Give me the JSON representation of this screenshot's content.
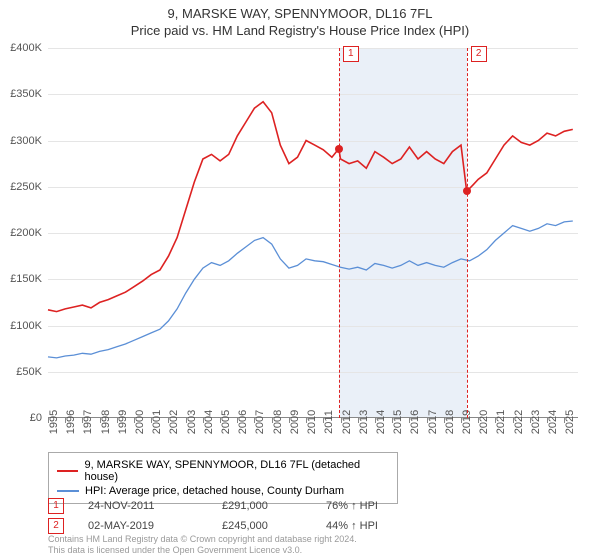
{
  "titles": {
    "line1": "9, MARSKE WAY, SPENNYMOOR, DL16 7FL",
    "line2": "Price paid vs. HM Land Registry's House Price Index (HPI)"
  },
  "chart": {
    "type": "line",
    "background_color": "#ffffff",
    "grid_color": "#e5e5e5",
    "axis_color": "#888888",
    "label_color": "#555555",
    "label_fontsize": 11,
    "x_years": [
      1995,
      1996,
      1997,
      1998,
      1999,
      2000,
      2001,
      2002,
      2003,
      2004,
      2005,
      2006,
      2007,
      2008,
      2009,
      2010,
      2011,
      2012,
      2013,
      2014,
      2015,
      2016,
      2017,
      2018,
      2019,
      2020,
      2021,
      2022,
      2023,
      2024,
      2025
    ],
    "xlim": [
      1995,
      2025.8
    ],
    "ylim": [
      0,
      400000
    ],
    "ytick_step": 50000,
    "y_tick_labels": [
      "£0",
      "£50K",
      "£100K",
      "£150K",
      "£200K",
      "£250K",
      "£300K",
      "£350K",
      "£400K"
    ],
    "shaded_band": {
      "x_start": 2011.9,
      "x_end": 2019.33,
      "color": "#eaf0f8"
    },
    "series": [
      {
        "name": "price_paid",
        "label": "9, MARSKE WAY, SPENNYMOOR, DL16 7FL (detached house)",
        "color": "#dd2222",
        "line_width": 1.6,
        "data": [
          [
            1995,
            117000
          ],
          [
            1995.5,
            115000
          ],
          [
            1996,
            118000
          ],
          [
            1996.5,
            120000
          ],
          [
            1997,
            122000
          ],
          [
            1997.5,
            119000
          ],
          [
            1998,
            125000
          ],
          [
            1998.5,
            128000
          ],
          [
            1999,
            132000
          ],
          [
            1999.5,
            136000
          ],
          [
            2000,
            142000
          ],
          [
            2000.5,
            148000
          ],
          [
            2001,
            155000
          ],
          [
            2001.5,
            160000
          ],
          [
            2002,
            175000
          ],
          [
            2002.5,
            195000
          ],
          [
            2003,
            225000
          ],
          [
            2003.5,
            255000
          ],
          [
            2004,
            280000
          ],
          [
            2004.5,
            285000
          ],
          [
            2005,
            278000
          ],
          [
            2005.5,
            285000
          ],
          [
            2006,
            305000
          ],
          [
            2006.5,
            320000
          ],
          [
            2007,
            335000
          ],
          [
            2007.5,
            342000
          ],
          [
            2008,
            330000
          ],
          [
            2008.5,
            295000
          ],
          [
            2009,
            275000
          ],
          [
            2009.5,
            282000
          ],
          [
            2010,
            300000
          ],
          [
            2010.5,
            295000
          ],
          [
            2011,
            290000
          ],
          [
            2011.5,
            282000
          ],
          [
            2011.9,
            291000
          ],
          [
            2012,
            280000
          ],
          [
            2012.5,
            275000
          ],
          [
            2013,
            278000
          ],
          [
            2013.5,
            270000
          ],
          [
            2014,
            288000
          ],
          [
            2014.5,
            282000
          ],
          [
            2015,
            275000
          ],
          [
            2015.5,
            280000
          ],
          [
            2016,
            293000
          ],
          [
            2016.5,
            280000
          ],
          [
            2017,
            288000
          ],
          [
            2017.5,
            280000
          ],
          [
            2018,
            275000
          ],
          [
            2018.5,
            288000
          ],
          [
            2019,
            295000
          ],
          [
            2019.33,
            245000
          ],
          [
            2019.7,
            252000
          ],
          [
            2020,
            258000
          ],
          [
            2020.5,
            265000
          ],
          [
            2021,
            280000
          ],
          [
            2021.5,
            295000
          ],
          [
            2022,
            305000
          ],
          [
            2022.5,
            298000
          ],
          [
            2023,
            295000
          ],
          [
            2023.5,
            300000
          ],
          [
            2024,
            308000
          ],
          [
            2024.5,
            305000
          ],
          [
            2025,
            310000
          ],
          [
            2025.5,
            312000
          ]
        ]
      },
      {
        "name": "hpi",
        "label": "HPI: Average price, detached house, County Durham",
        "color": "#5b8fd6",
        "line_width": 1.3,
        "data": [
          [
            1995,
            66000
          ],
          [
            1995.5,
            65000
          ],
          [
            1996,
            67000
          ],
          [
            1996.5,
            68000
          ],
          [
            1997,
            70000
          ],
          [
            1997.5,
            69000
          ],
          [
            1998,
            72000
          ],
          [
            1998.5,
            74000
          ],
          [
            1999,
            77000
          ],
          [
            1999.5,
            80000
          ],
          [
            2000,
            84000
          ],
          [
            2000.5,
            88000
          ],
          [
            2001,
            92000
          ],
          [
            2001.5,
            96000
          ],
          [
            2002,
            105000
          ],
          [
            2002.5,
            118000
          ],
          [
            2003,
            135000
          ],
          [
            2003.5,
            150000
          ],
          [
            2004,
            162000
          ],
          [
            2004.5,
            168000
          ],
          [
            2005,
            165000
          ],
          [
            2005.5,
            170000
          ],
          [
            2006,
            178000
          ],
          [
            2006.5,
            185000
          ],
          [
            2007,
            192000
          ],
          [
            2007.5,
            195000
          ],
          [
            2008,
            188000
          ],
          [
            2008.5,
            172000
          ],
          [
            2009,
            162000
          ],
          [
            2009.5,
            165000
          ],
          [
            2010,
            172000
          ],
          [
            2010.5,
            170000
          ],
          [
            2011,
            169000
          ],
          [
            2011.5,
            166000
          ],
          [
            2012,
            163000
          ],
          [
            2012.5,
            161000
          ],
          [
            2013,
            163000
          ],
          [
            2013.5,
            160000
          ],
          [
            2014,
            167000
          ],
          [
            2014.5,
            165000
          ],
          [
            2015,
            162000
          ],
          [
            2015.5,
            165000
          ],
          [
            2016,
            170000
          ],
          [
            2016.5,
            165000
          ],
          [
            2017,
            168000
          ],
          [
            2017.5,
            165000
          ],
          [
            2018,
            163000
          ],
          [
            2018.5,
            168000
          ],
          [
            2019,
            172000
          ],
          [
            2019.5,
            170000
          ],
          [
            2020,
            175000
          ],
          [
            2020.5,
            182000
          ],
          [
            2021,
            192000
          ],
          [
            2021.5,
            200000
          ],
          [
            2022,
            208000
          ],
          [
            2022.5,
            205000
          ],
          [
            2023,
            202000
          ],
          [
            2023.5,
            205000
          ],
          [
            2024,
            210000
          ],
          [
            2024.5,
            208000
          ],
          [
            2025,
            212000
          ],
          [
            2025.5,
            213000
          ]
        ]
      }
    ],
    "markers": [
      {
        "badge": "1",
        "x": 2011.9,
        "y": 291000,
        "color": "#dd2222"
      },
      {
        "badge": "2",
        "x": 2019.33,
        "y": 245000,
        "color": "#dd2222"
      }
    ]
  },
  "legend": {
    "border_color": "#aaaaaa"
  },
  "records": [
    {
      "badge": "1",
      "date": "24-NOV-2011",
      "price": "£291,000",
      "delta": "76% ↑ HPI"
    },
    {
      "badge": "2",
      "date": "02-MAY-2019",
      "price": "£245,000",
      "delta": "44% ↑ HPI"
    }
  ],
  "footer": {
    "line1": "Contains HM Land Registry data © Crown copyright and database right 2024.",
    "line2": "This data is licensed under the Open Government Licence v3.0."
  }
}
